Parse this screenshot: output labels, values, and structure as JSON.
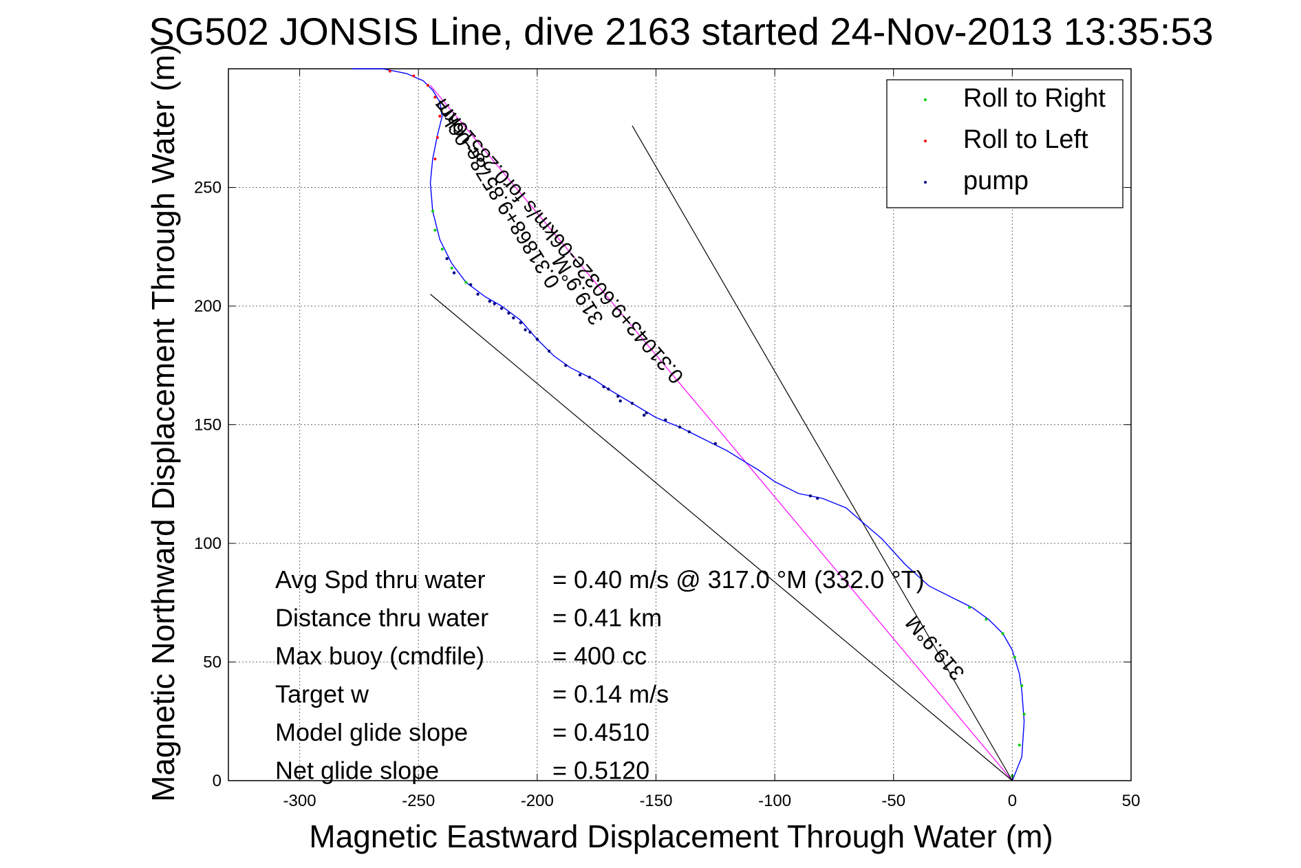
{
  "chart_data": {
    "type": "line",
    "title": "SG502 JONSIS Line, dive 2163 started 24-Nov-2013 13:35:53",
    "xlabel": "Magnetic Eastward Displacement Through Water (m)",
    "ylabel": "Magnetic Northward Displacement Through Water (m)",
    "xlim": [
      -330,
      50
    ],
    "ylim": [
      0,
      300
    ],
    "xticks": [
      -300,
      -250,
      -200,
      -150,
      -100,
      -50,
      0,
      50
    ],
    "yticks": [
      0,
      50,
      100,
      150,
      200,
      250
    ],
    "xtick_labels": [
      "-300",
      "-250",
      "-200",
      "-150",
      "-100",
      "-50",
      "0",
      "50"
    ],
    "ytick_labels": [
      "0",
      "50",
      "100",
      "150",
      "200",
      "250"
    ],
    "grid": true,
    "legend_position": "top-right",
    "legend": [
      {
        "label": "Roll to Right",
        "color": "#00cc00"
      },
      {
        "label": "Roll to Left",
        "color": "#ff0000"
      },
      {
        "label": "pump",
        "color": "#000080"
      }
    ],
    "track": {
      "color": "#0000ff",
      "x": [
        0,
        4,
        5,
        4,
        3,
        0,
        -4,
        -10,
        -17,
        -25,
        -35,
        -45,
        -55,
        -62,
        -70,
        -80,
        -90,
        -100,
        -107,
        -112,
        -120,
        -130,
        -140,
        -150,
        -160,
        -170,
        -176,
        -180,
        -186,
        -193,
        -200,
        -207,
        -215,
        -222,
        -230,
        -236,
        -241,
        -244,
        -245,
        -244,
        -242,
        -240,
        -241,
        -244,
        -248,
        -255,
        -265,
        -278
      ],
      "y": [
        0,
        10,
        25,
        38,
        45,
        55,
        62,
        68,
        73,
        77,
        82,
        91,
        102,
        108,
        115,
        119,
        121,
        126,
        131,
        134,
        139,
        144,
        149,
        153,
        159,
        165,
        169,
        171,
        174,
        179,
        186,
        194,
        200,
        204,
        210,
        218,
        228,
        240,
        252,
        262,
        272,
        280,
        286,
        291,
        295,
        298,
        300,
        300
      ]
    },
    "roll_right_points": {
      "color": "#00cc00",
      "x": [
        0,
        3,
        5,
        4,
        1,
        -4,
        -11,
        -18,
        -244,
        -243,
        -240,
        -236,
        -230
      ],
      "y": [
        2,
        15,
        28,
        40,
        52,
        62,
        68,
        73,
        240,
        232,
        224,
        216,
        210
      ]
    },
    "roll_left_points": {
      "color": "#ff0000",
      "x": [
        -243,
        -242,
        -241,
        -243,
        -246,
        -252,
        -262
      ],
      "y": [
        262,
        271,
        280,
        288,
        293,
        297,
        299
      ]
    },
    "pump_points": {
      "color": "#000080",
      "x": [
        -82,
        -85,
        -125,
        -140,
        -155,
        -165,
        -172,
        -178,
        -182,
        -188,
        -195,
        -205,
        -212,
        -220
      ],
      "y": [
        119,
        120,
        142,
        149,
        154,
        160,
        166,
        170,
        171,
        175,
        181,
        190,
        197,
        202
      ],
      "series_x": [
        -170,
        -166,
        -160,
        -154,
        -146,
        -136,
        -200,
        -203,
        -207,
        -210,
        -215,
        -218,
        -225,
        -228,
        -235,
        -238
      ],
      "series_y": [
        165,
        162,
        159,
        155,
        152,
        147,
        186,
        189,
        193,
        195,
        199,
        201,
        205,
        209,
        214,
        220
      ]
    },
    "reference_lines": [
      {
        "name": "magenta",
        "color": "#ff00ff",
        "x": [
          0,
          -245
        ],
        "y": [
          0,
          293
        ]
      },
      {
        "name": "black-1",
        "color": "#000000",
        "x": [
          0,
          -160
        ],
        "y": [
          0,
          276
        ]
      },
      {
        "name": "black-2",
        "color": "#000000",
        "x": [
          0,
          -245
        ],
        "y": [
          0,
          205
        ]
      }
    ],
    "rotated_annotations": [
      {
        "text": "0.31868+9.8578e-06km",
        "anchor_x": -239,
        "anchor_y": 288,
        "angle": 58
      },
      {
        "text": "0.31043+9.6032e-06km/s for0.28516hr=",
        "anchor_x": -240,
        "anchor_y": 288,
        "angle": 49
      },
      {
        "text": "319.9°M",
        "anchor_x": -189,
        "anchor_y": 222,
        "angle": 58
      },
      {
        "text": "319.9°M",
        "anchor_x": -41,
        "anchor_y": 70,
        "angle": 49
      }
    ],
    "stats": [
      {
        "label": "Avg Spd thru water",
        "value": "=  0.40 m/s @ 317.0 °M (332.0 °T)"
      },
      {
        "label": "Distance thru water",
        "value": "=  0.41 km"
      },
      {
        "label": "Max buoy (cmdfile)",
        "value": "= 400 cc"
      },
      {
        "label": "Target w",
        "value": "= 0.14 m/s"
      },
      {
        "label": "Model glide slope",
        "value": "= 0.4510"
      },
      {
        "label": "Net glide slope",
        "value": "= 0.5120"
      }
    ]
  }
}
